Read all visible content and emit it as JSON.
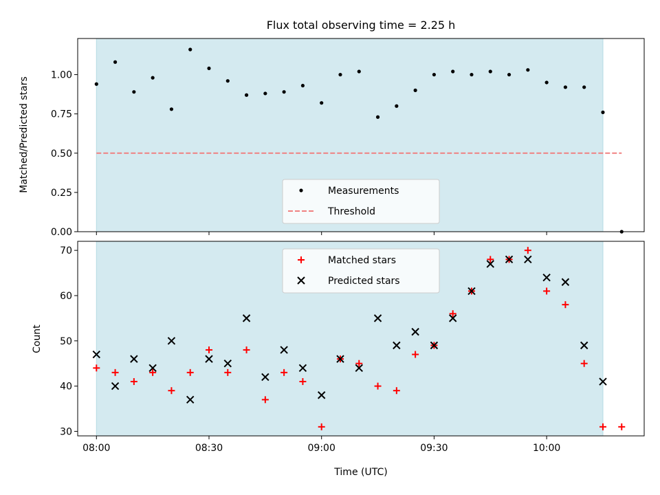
{
  "chart_data": [
    {
      "type": "scatter",
      "title": "Flux total observing time = 2.25 h",
      "ylabel": "Matched/Predicted stars",
      "xlabel": "",
      "x_ticks": [
        "08:00",
        "08:30",
        "09:00",
        "09:30",
        "10:00"
      ],
      "y_ticks": [
        "0.00",
        "0.25",
        "0.50",
        "0.75",
        "1.00"
      ],
      "ylim": [
        0,
        1.23
      ],
      "xlim": [
        "07:55",
        "10:26"
      ],
      "shaded_interval": [
        "08:00",
        "10:15"
      ],
      "shade_color": "#d4eaf0",
      "legend_position": "bottom-center",
      "series": [
        {
          "name": "Measurements",
          "marker": "dot",
          "color": "#000000",
          "x": [
            "08:00",
            "08:05",
            "08:10",
            "08:15",
            "08:20",
            "08:25",
            "08:30",
            "08:35",
            "08:40",
            "08:45",
            "08:50",
            "08:55",
            "09:00",
            "09:05",
            "09:10",
            "09:15",
            "09:20",
            "09:25",
            "09:30",
            "09:35",
            "09:40",
            "09:45",
            "09:50",
            "09:55",
            "10:00",
            "10:05",
            "10:10",
            "10:15",
            "10:20"
          ],
          "y": [
            0.94,
            1.08,
            0.89,
            0.98,
            0.78,
            1.16,
            1.04,
            0.96,
            0.87,
            0.88,
            0.89,
            0.93,
            0.82,
            1.0,
            1.02,
            0.73,
            0.8,
            0.9,
            1.0,
            1.02,
            1.0,
            1.02,
            1.0,
            1.03,
            0.95,
            0.92,
            0.92,
            0.76,
            0.0
          ]
        },
        {
          "name": "Threshold",
          "type": "dashed-line",
          "color": "#f08080",
          "x": [
            "08:00",
            "10:20"
          ],
          "y": [
            0.5,
            0.5
          ]
        }
      ]
    },
    {
      "type": "scatter",
      "title": "",
      "ylabel": "Count",
      "xlabel": "Time (UTC)",
      "x_ticks": [
        "08:00",
        "08:30",
        "09:00",
        "09:30",
        "10:00"
      ],
      "y_ticks": [
        "30",
        "40",
        "50",
        "60",
        "70"
      ],
      "ylim": [
        29,
        72
      ],
      "xlim": [
        "07:55",
        "10:26"
      ],
      "shaded_interval": [
        "08:00",
        "10:15"
      ],
      "shade_color": "#d4eaf0",
      "legend_position": "top-center",
      "series": [
        {
          "name": "Matched stars",
          "marker": "plus",
          "color": "#ff0000",
          "x": [
            "08:00",
            "08:05",
            "08:10",
            "08:15",
            "08:20",
            "08:25",
            "08:30",
            "08:35",
            "08:40",
            "08:45",
            "08:50",
            "08:55",
            "09:00",
            "09:05",
            "09:10",
            "09:15",
            "09:20",
            "09:25",
            "09:30",
            "09:35",
            "09:40",
            "09:45",
            "09:50",
            "09:55",
            "10:00",
            "10:05",
            "10:10",
            "10:15",
            "10:20"
          ],
          "y": [
            44,
            43,
            41,
            43,
            39,
            43,
            48,
            43,
            48,
            37,
            43,
            41,
            31,
            46,
            45,
            40,
            39,
            47,
            49,
            56,
            61,
            68,
            68,
            70,
            61,
            58,
            45,
            31,
            31
          ]
        },
        {
          "name": "Predicted stars",
          "marker": "x",
          "color": "#000000",
          "x": [
            "08:00",
            "08:05",
            "08:10",
            "08:15",
            "08:20",
            "08:25",
            "08:30",
            "08:35",
            "08:40",
            "08:45",
            "08:50",
            "08:55",
            "09:00",
            "09:05",
            "09:10",
            "09:15",
            "09:20",
            "09:25",
            "09:30",
            "09:35",
            "09:40",
            "09:45",
            "09:50",
            "09:55",
            "10:00",
            "10:05",
            "10:10",
            "10:15"
          ],
          "y": [
            47,
            40,
            46,
            44,
            50,
            37,
            46,
            45,
            55,
            42,
            48,
            44,
            38,
            46,
            44,
            55,
            49,
            52,
            49,
            55,
            61,
            67,
            68,
            68,
            64,
            63,
            49,
            41
          ]
        }
      ]
    }
  ]
}
